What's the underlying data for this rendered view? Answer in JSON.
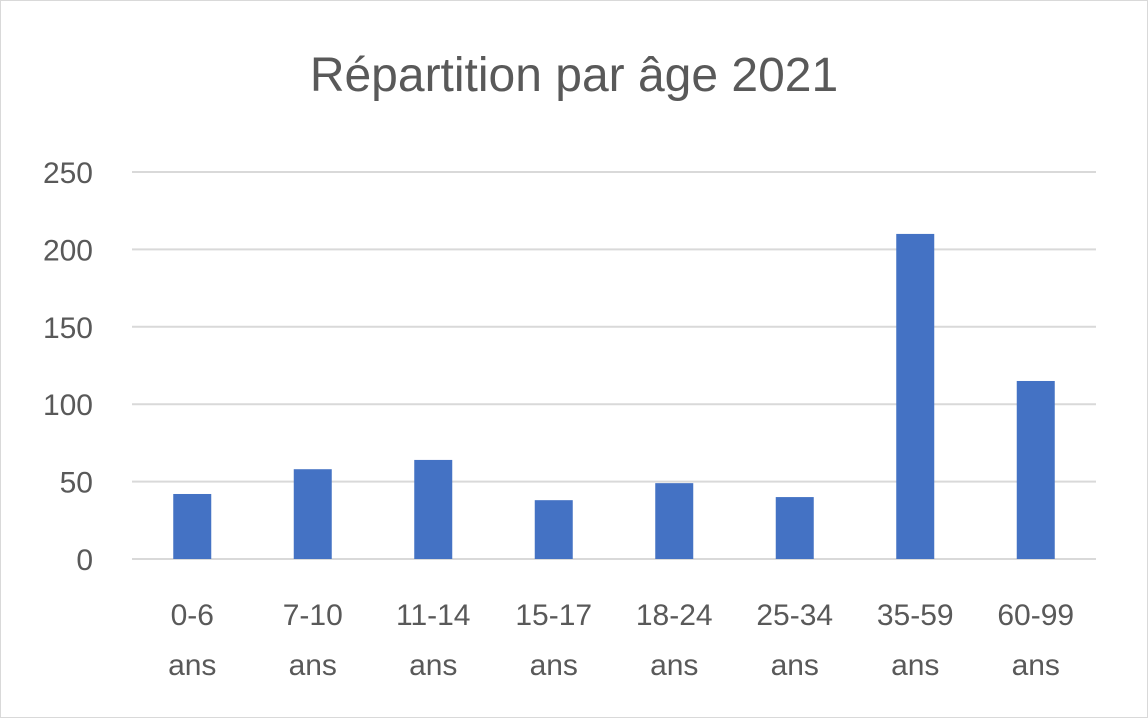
{
  "chart_data": {
    "type": "bar",
    "title": "Répartition par âge 2021",
    "xlabel": "",
    "ylabel": "",
    "categories": [
      [
        "0-6",
        "ans"
      ],
      [
        "7-10",
        "ans"
      ],
      [
        "11-14",
        "ans"
      ],
      [
        "15-17",
        "ans"
      ],
      [
        "18-24",
        "ans"
      ],
      [
        "25-34",
        "ans"
      ],
      [
        "35-59",
        "ans"
      ],
      [
        "60-99",
        "ans"
      ]
    ],
    "values": [
      42,
      58,
      64,
      38,
      49,
      40,
      210,
      115
    ],
    "ylim": [
      0,
      250
    ],
    "yticks": [
      0,
      50,
      100,
      150,
      200,
      250
    ],
    "grid": true,
    "legend": "none",
    "bar_color": "#4472c4",
    "grid_color": "#d9d9d9",
    "text_color": "#595959"
  }
}
